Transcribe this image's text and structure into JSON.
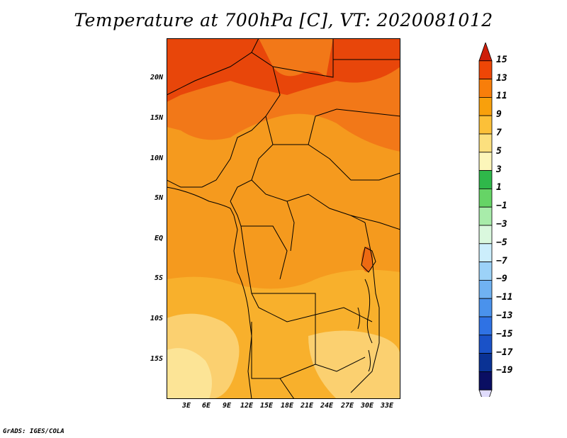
{
  "title": "Temperature at 700hPa [C], VT: 2020081012",
  "credit": "GrADS: IGES/COLA",
  "map": {
    "lat_labels": [
      "20N",
      "15N",
      "10N",
      "5N",
      "EQ",
      "5S",
      "10S",
      "15S"
    ],
    "lon_labels": [
      "3E",
      "6E",
      "9E",
      "12E",
      "15E",
      "18E",
      "21E",
      "24E",
      "27E",
      "30E",
      "33E"
    ]
  },
  "colorbar": {
    "labels": [
      "15",
      "13",
      "11",
      "9",
      "7",
      "5",
      "3",
      "1",
      "−1",
      "−3",
      "−5",
      "−7",
      "−9",
      "−11",
      "−13",
      "−15",
      "−17",
      "−19"
    ],
    "colors": [
      "#ce1e0a",
      "#ee4606",
      "#f87e0a",
      "#f8a00c",
      "#fcc038",
      "#fce07e",
      "#fcf6ba",
      "#2fb84a",
      "#66d466",
      "#a8ecaa",
      "#daf8de",
      "#cceefc",
      "#9cd2f8",
      "#70b2f2",
      "#4a92ec",
      "#2f72e4",
      "#1a52c8",
      "#0a3294",
      "#0a0e62",
      "#e0dcfc"
    ]
  },
  "regions": {
    "sahara_north": "#e8460a",
    "sahel": "#f27818",
    "central": "#f59a1e",
    "south": "#f8b02c",
    "southwest": "#fbd070",
    "southwest_light": "#fce496",
    "lake_victoria_region": "#ee6a12"
  }
}
